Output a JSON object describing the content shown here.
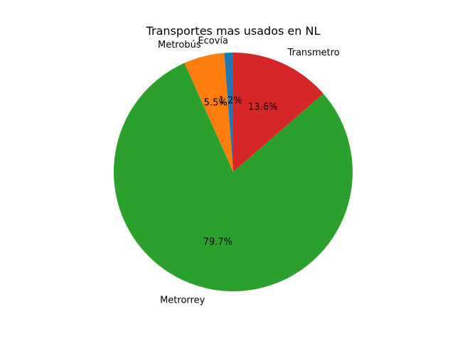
{
  "chart_data": {
    "type": "pie",
    "title": "Transportes mas usados en NL",
    "slices": [
      {
        "label": "Ecovía",
        "value": 1.2,
        "display": "1.2%",
        "color": "#1f77b4"
      },
      {
        "label": "Metrobús",
        "value": 5.5,
        "display": "5.5%",
        "color": "#ff7f0e"
      },
      {
        "label": "Metrorrey",
        "value": 79.7,
        "display": "79.7%",
        "color": "#2ca02c"
      },
      {
        "label": "Transmetro",
        "value": 13.6,
        "display": "13.6%",
        "color": "#d62728"
      }
    ],
    "start_angle_deg": 90,
    "direction": "counterclockwise",
    "legend": "none",
    "grid": false
  }
}
